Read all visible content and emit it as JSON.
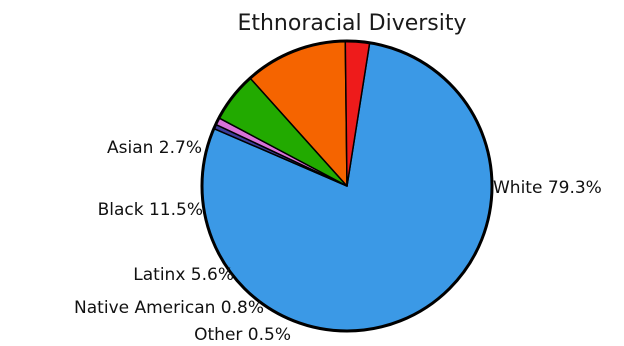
{
  "chart_data": {
    "type": "pie",
    "title": "Ethnoracial Diversity",
    "start_angle_deg": 81,
    "direction": "clockwise",
    "slices": [
      {
        "label": "White",
        "value": 79.3,
        "display": "White 79.3%",
        "color": "#3b99e6"
      },
      {
        "label": "Other",
        "value": 0.5,
        "display": "Other 0.5%",
        "color": "#3c3c9a"
      },
      {
        "label": "Native American",
        "value": 0.8,
        "display": "Native American 0.8%",
        "color": "#d873d8"
      },
      {
        "label": "Latinx",
        "value": 5.6,
        "display": "Latinx 5.6%",
        "color": "#22aa00"
      },
      {
        "label": "Black",
        "value": 11.5,
        "display": "Black 11.5%",
        "color": "#f56400"
      },
      {
        "label": "Asian",
        "value": 2.7,
        "display": "Asian 2.7%",
        "color": "#ee1b1b"
      }
    ]
  }
}
